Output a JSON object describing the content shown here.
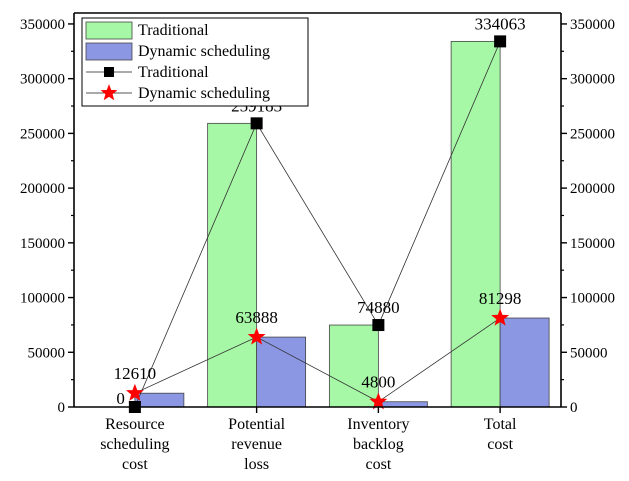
{
  "chart_data": {
    "type": "bar",
    "categories": [
      [
        "Resource",
        "scheduling",
        "cost"
      ],
      [
        "Potential",
        "revenue",
        "loss"
      ],
      [
        "Inventory",
        "backlog",
        "cost"
      ],
      [
        "Total",
        "cost"
      ]
    ],
    "ylim": [
      0,
      360000
    ],
    "yticks": [
      0,
      50000,
      100000,
      150000,
      200000,
      250000,
      300000,
      350000
    ],
    "title": "",
    "xlabel": "",
    "ylabel": "",
    "series": [
      {
        "name": "Traditional",
        "kind": "bar",
        "color": "#a6f7a6",
        "values": [
          0,
          259183,
          74880,
          334063
        ]
      },
      {
        "name": "Dynamic scheduling",
        "kind": "bar",
        "color": "#8b97e3",
        "values": [
          12610,
          63888,
          4800,
          81298
        ]
      },
      {
        "name": "Traditional",
        "kind": "line",
        "marker": "square",
        "color": "#000000",
        "values": [
          0,
          259183,
          74880,
          334063
        ]
      },
      {
        "name": "Dynamic scheduling",
        "kind": "line",
        "marker": "star",
        "color": "#ff0000",
        "values": [
          12610,
          63888,
          4800,
          81298
        ]
      }
    ],
    "data_labels": {
      "traditional": [
        "0",
        "259183",
        "74880",
        "334063"
      ],
      "dynamic": [
        "12610",
        "63888",
        "4800",
        "81298"
      ]
    },
    "grid": false,
    "legend_position": "top-left",
    "right_axis": "mirror"
  }
}
